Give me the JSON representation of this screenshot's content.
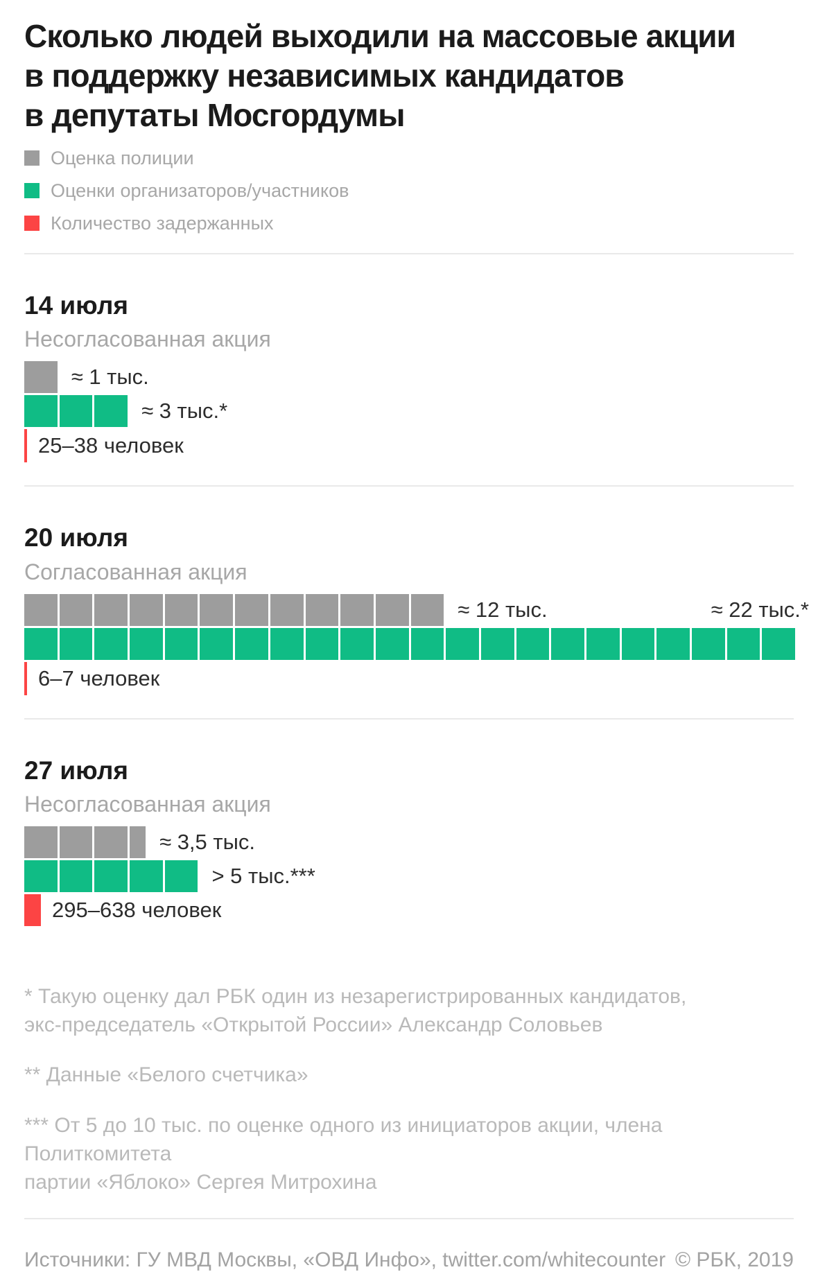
{
  "title": "Сколько людей выходили на массовые акции\nв поддержку независимых кандидатов\nв депутаты Мосгордумы",
  "legend": {
    "police": "Оценка полиции",
    "organizers": "Оценки организаторов/участников",
    "detained": "Количество задержанных"
  },
  "colors": {
    "police": "#9d9d9d",
    "organizers": "#10bc85",
    "detained": "#fc4444"
  },
  "sections": [
    {
      "date": "14 июля",
      "status": "Несогласованная акция",
      "police_units": 1,
      "police_label": "≈ 1 тыс.",
      "organizers_units": 3,
      "organizers_label": "≈ 3 тыс.*",
      "organizers_label_position": "inline",
      "detained_label": "25–38 человек",
      "detained_mark": "line"
    },
    {
      "date": "20 июля",
      "status": "Согласованная акция",
      "police_units": 12,
      "police_label": "≈ 12 тыс.",
      "organizers_units": 22,
      "organizers_label": "≈ 22 тыс.*",
      "organizers_label_position": "top-right",
      "detained_label": "6–7 человек",
      "detained_mark": "line"
    },
    {
      "date": "27 июля",
      "status": "Несогласованная акция",
      "police_units": 3.5,
      "police_label": "≈ 3,5 тыс.",
      "organizers_units": 5,
      "organizers_label": "> 5 тыс.***",
      "organizers_label_position": "inline",
      "detained_label": "295–638 человек",
      "detained_mark": "block"
    }
  ],
  "footnotes": [
    "* Такую оценку дал РБК один из незарегистрированных кандидатов,\nэкс-председатель «Открытой России» Александр Соловьев",
    "** Данные «Белого счетчика»",
    "*** От 5 до 10 тыс. по оценке одного из инициаторов акции, члена Политкомитета\nпартии «Яблоко» Сергея Митрохина"
  ],
  "footer": {
    "sources": "Источники: ГУ МВД Москвы, «ОВД Инфо», twitter.com/whitecounter",
    "copyright": "© РБК, 2019"
  },
  "chart_data": {
    "type": "bar",
    "subtype": "pictogram-unit-chart",
    "unit": "1 квадрат = 1 тыс. человек",
    "title": "Сколько людей выходили на массовые акции в поддержку независимых кандидатов в депутаты Мосгордумы",
    "categories": [
      "14 июля",
      "20 июля",
      "27 июля"
    ],
    "category_notes": [
      "Несогласованная акция",
      "Согласованная акция",
      "Несогласованная акция"
    ],
    "legend_position": "top",
    "series": [
      {
        "name": "Оценка полиции",
        "unit": "тыс. человек",
        "color": "#9d9d9d",
        "values": [
          1,
          12,
          3.5
        ],
        "labels": [
          "≈ 1 тыс.",
          "≈ 12 тыс.",
          "≈ 3,5 тыс."
        ]
      },
      {
        "name": "Оценки организаторов/участников",
        "unit": "тыс. человек",
        "color": "#10bc85",
        "values": [
          3,
          22,
          5
        ],
        "labels": [
          "≈ 3 тыс.*",
          "≈ 22 тыс.*",
          "> 5 тыс.***"
        ]
      },
      {
        "name": "Количество задержанных",
        "unit": "человек",
        "color": "#fc4444",
        "values": [
          [
            25,
            38
          ],
          [
            6,
            7
          ],
          [
            295,
            638
          ]
        ],
        "labels": [
          "25–38 человек",
          "6–7 человек",
          "295–638 человек"
        ]
      }
    ]
  }
}
